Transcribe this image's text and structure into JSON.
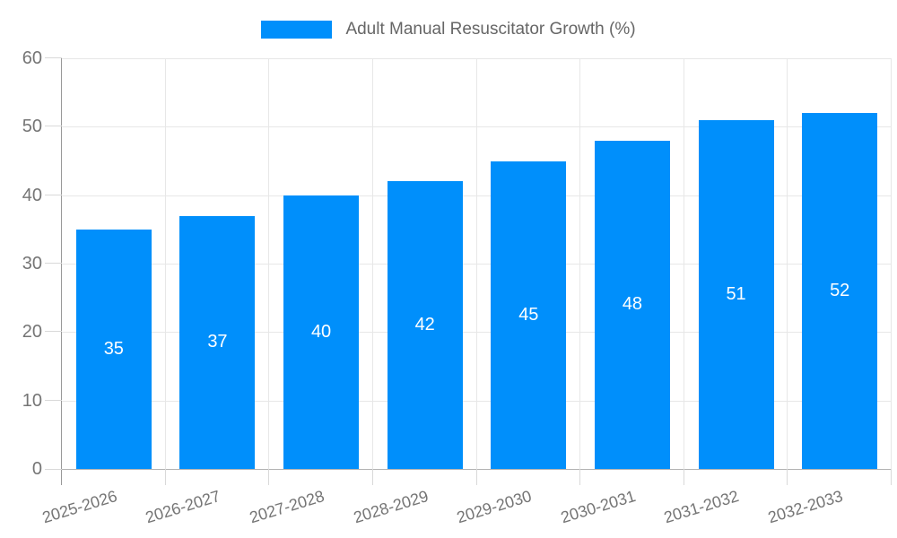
{
  "chart_data": {
    "type": "bar",
    "title": "Adult Manual Resuscitator Growth (%)",
    "categories": [
      "2025-2026",
      "2026-2027",
      "2027-2028",
      "2028-2029",
      "2029-2030",
      "2030-2031",
      "2031-2032",
      "2032-2033"
    ],
    "values": [
      35,
      37,
      40,
      42,
      45,
      48,
      51,
      52
    ],
    "yticks": [
      0,
      10,
      20,
      30,
      40,
      50,
      60
    ],
    "ylim": [
      0,
      60
    ],
    "xlabel": "",
    "ylabel": "",
    "grid": true,
    "bar_value_labels_inside": true,
    "legend_position": "top",
    "colors": {
      "bar": "#008FFB",
      "bar_value_text": "#ffffff",
      "axis_text": "#757575",
      "legend_text": "#666666",
      "gridline": "#e7e7e7",
      "tick": "#d9d9d9",
      "axis_line": "#999999",
      "baseline": "#b3b3b3",
      "background": "#ffffff"
    }
  }
}
